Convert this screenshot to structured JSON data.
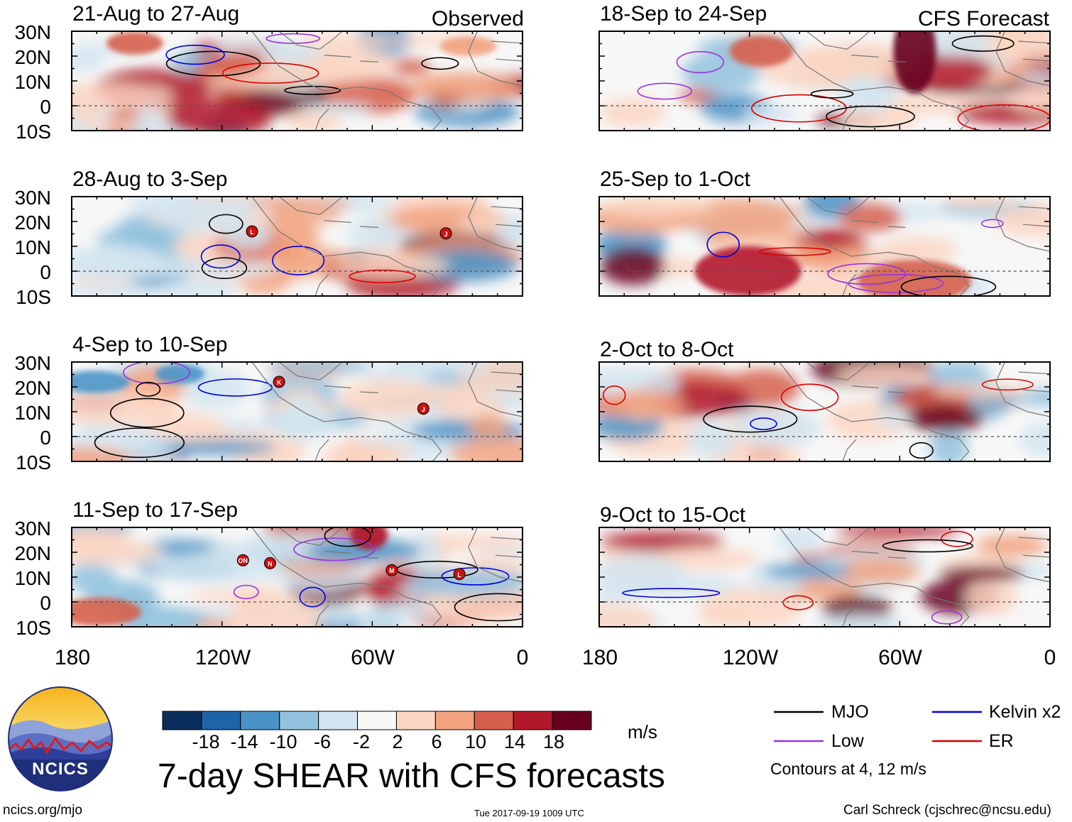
{
  "panels": [
    {
      "title": "21-Aug to 27-Aug",
      "tag": "Observed"
    },
    {
      "title": "28-Aug to 3-Sep"
    },
    {
      "title": "4-Sep to 10-Sep"
    },
    {
      "title": "11-Sep to 17-Sep"
    },
    {
      "title": "18-Sep to 24-Sep",
      "tag": "CFS Forecast"
    },
    {
      "title": "25-Sep to 1-Oct"
    },
    {
      "title": "2-Oct to 8-Oct"
    },
    {
      "title": "9-Oct to 15-Oct"
    }
  ],
  "lat_labels": [
    "30N",
    "20N",
    "10N",
    "0",
    "10S"
  ],
  "lon_labels": [
    "180",
    "120W",
    "60W",
    "0"
  ],
  "colorbar": {
    "labels": [
      "-18",
      "-14",
      "-10",
      "-6",
      "-2",
      "2",
      "6",
      "10",
      "14",
      "18"
    ],
    "colors": [
      "#0b2f5c",
      "#1e64a8",
      "#4a93c6",
      "#92c2de",
      "#d2e5f0",
      "#f7f7f7",
      "#fbd6c3",
      "#f2a27f",
      "#d6604d",
      "#b2182b",
      "#67001f"
    ],
    "units": "m/s"
  },
  "title": "7-day SHEAR with CFS forecasts",
  "legend": {
    "items": [
      {
        "label": "MJO",
        "color": "#000000"
      },
      {
        "label": "Kelvin x2",
        "color": "#0000dd"
      },
      {
        "label": "Low",
        "color": "#9933dd"
      },
      {
        "label": "ER",
        "color": "#dd0000"
      }
    ],
    "note": "Contours at 4, 12 m/s"
  },
  "logo_text": "NCICS",
  "footer": {
    "left": "ncics.org/mjo",
    "center": "Tue 2017-09-19 1009 UTC",
    "right": "Carl Schreck (cjschrec@ncsu.edu)"
  },
  "storms": [
    {
      "panel": 1,
      "mark": "L"
    },
    {
      "panel": 1,
      "mark": "J"
    },
    {
      "panel": 2,
      "mark": "K"
    },
    {
      "panel": 2,
      "mark": "J"
    },
    {
      "panel": 3,
      "mark": "ON"
    },
    {
      "panel": 3,
      "mark": "N"
    },
    {
      "panel": 3,
      "mark": "M"
    },
    {
      "panel": 3,
      "mark": "L"
    }
  ]
}
